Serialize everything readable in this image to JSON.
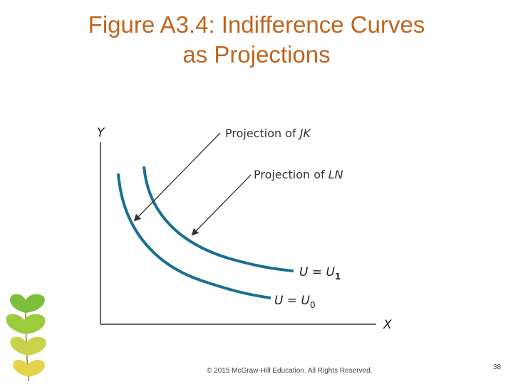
{
  "slide": {
    "title_line1": "Figure A3.4: Indifference Curves",
    "title_line2": "as Projections",
    "footer": "© 2015 McGraw-Hill Education. All Rights Reserved.",
    "page_number": "38"
  },
  "diagram": {
    "y_axis_label": "Y",
    "x_axis_label": "X",
    "annotation_jk": {
      "prefix": "Projection of ",
      "italic": "JK"
    },
    "annotation_ln": {
      "prefix": "Projection of ",
      "italic": "LN"
    },
    "curve_u1": {
      "lhs": "U",
      "eq": " = ",
      "rhs": "U",
      "sub": "1"
    },
    "curve_u0": {
      "lhs": "U",
      "eq": " = ",
      "rhs": "U",
      "sub": "0"
    },
    "colors": {
      "title": "#c0651f",
      "curve": "#1a6e92",
      "axis": "#333333",
      "arrow": "#333333",
      "leaf_green": "#7bbf3a",
      "leaf_yellow": "#e3d44a"
    }
  }
}
